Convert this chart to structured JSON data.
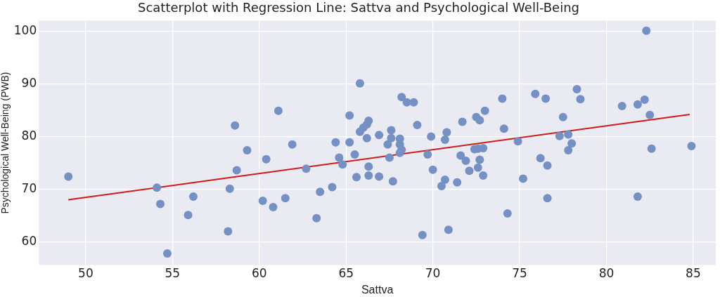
{
  "chart_data": {
    "type": "scatter",
    "title": "Scatterplot with Regression Line: Sattva and Psychological Well-Being",
    "xlabel": "Sattva",
    "ylabel": "Psychological Well-Being (PWB)",
    "xlim": [
      47.3,
      86.3
    ],
    "ylim": [
      55.6,
      102
    ],
    "xticks": [
      50,
      55,
      60,
      65,
      70,
      75,
      80,
      85
    ],
    "yticks": [
      60,
      70,
      80,
      90,
      100
    ],
    "grid": true,
    "legend": false,
    "marker": "circle",
    "series": [
      {
        "type": "scatter",
        "color": "#7590c3",
        "x": [
          49.0,
          54.1,
          54.3,
          54.7,
          55.9,
          56.2,
          58.2,
          58.3,
          58.6,
          58.7,
          59.3,
          60.2,
          60.4,
          60.8,
          61.1,
          61.5,
          61.9,
          62.7,
          63.3,
          63.5,
          64.2,
          64.4,
          64.6,
          64.8,
          65.2,
          65.2,
          65.5,
          65.6,
          65.8,
          65.8,
          66.0,
          66.2,
          66.3,
          66.3,
          66.2,
          66.3,
          66.9,
          66.9,
          67.4,
          67.6,
          67.6,
          67.5,
          67.7,
          68.1,
          68.1,
          68.2,
          68.1,
          68.2,
          68.5,
          68.9,
          69.1,
          69.4,
          69.7,
          69.9,
          70.0,
          70.5,
          70.7,
          70.7,
          70.8,
          70.9,
          71.4,
          71.6,
          71.7,
          71.9,
          72.1,
          72.4,
          72.5,
          72.7,
          72.6,
          72.7,
          72.9,
          72.6,
          72.9,
          73.0,
          74.0,
          74.1,
          74.3,
          74.9,
          75.2,
          75.9,
          76.2,
          76.5,
          76.6,
          76.6,
          77.3,
          77.5,
          77.8,
          77.8,
          78.0,
          78.3,
          78.5,
          80.9,
          81.8,
          81.8,
          82.2,
          82.3,
          82.5,
          82.6,
          84.9
        ],
        "values": [
          72.4,
          70.3,
          67.2,
          57.8,
          65.1,
          68.6,
          62.0,
          70.1,
          82.1,
          73.6,
          77.4,
          67.8,
          75.7,
          66.6,
          84.9,
          68.3,
          78.5,
          73.9,
          64.5,
          69.5,
          70.4,
          78.9,
          76.0,
          74.7,
          78.9,
          84.0,
          76.6,
          72.3,
          90.1,
          80.9,
          81.7,
          82.3,
          83.0,
          74.3,
          79.7,
          72.6,
          80.3,
          72.4,
          78.5,
          81.2,
          79.7,
          76.0,
          71.5,
          79.6,
          78.5,
          77.5,
          76.9,
          87.5,
          86.5,
          86.5,
          82.2,
          61.3,
          76.6,
          80.0,
          73.7,
          70.6,
          71.8,
          79.4,
          80.8,
          62.3,
          71.3,
          76.4,
          82.8,
          75.4,
          73.5,
          77.6,
          83.7,
          83.1,
          74.1,
          75.6,
          72.6,
          77.7,
          77.8,
          84.9,
          87.2,
          81.5,
          65.4,
          79.1,
          72.0,
          88.1,
          75.9,
          87.2,
          74.5,
          68.3,
          80.1,
          83.7,
          80.4,
          77.4,
          78.7,
          89.0,
          87.1,
          85.8,
          68.6,
          86.1,
          87.0,
          100.1,
          84.1,
          77.7,
          78.2
        ]
      },
      {
        "type": "line",
        "color": "#d11a1a",
        "x": [
          49.0,
          84.8
        ],
        "values": [
          68.0,
          84.2
        ],
        "marker": "none"
      }
    ]
  }
}
